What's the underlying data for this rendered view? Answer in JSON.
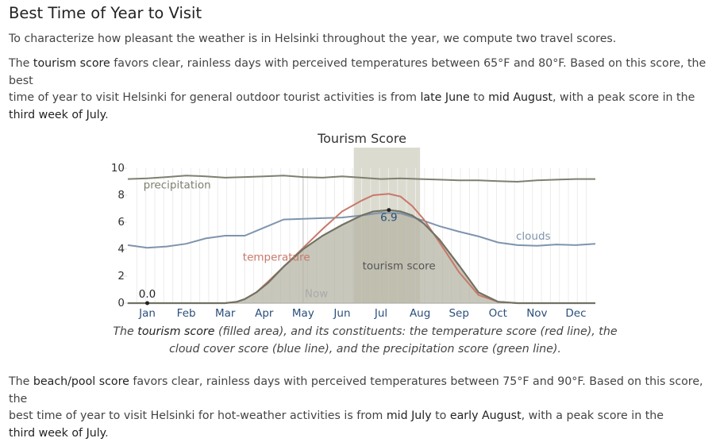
{
  "section": {
    "title": "Best Time of Year to Visit",
    "intro": "To characterize how pleasant the weather is in Helsinki throughout the year, we compute two travel scores."
  },
  "tourism": {
    "t1": "The ",
    "t2": "tourism score",
    "t3": " favors clear, rainless days with perceived temperatures between 65°F and 80°F. Based on this score, the best",
    "t4": "time of year to visit Helsinki for general outdoor tourist activities is from ",
    "t5": "late June",
    "t6": " to ",
    "t7": "mid August",
    "t8": ", with a peak score in the",
    "t9": "third week of July",
    "t10": "."
  },
  "caption": {
    "c1": "The ",
    "c2": "tourism score",
    "c3": " (filled area), and its constituents: the temperature score (red line), the",
    "c4": "cloud cover score (blue line), and the precipitation score (green line)."
  },
  "beach": {
    "b1": "The ",
    "b2": "beach/pool score",
    "b3": " favors clear, rainless days with perceived temperatures between 75°F and 90°F. Based on this score, the",
    "b4": "best time of year to visit Helsinki for hot-weather activities is from ",
    "b5": "mid July",
    "b6": " to ",
    "b7": "early August",
    "b8": ", with a peak score in the",
    "b9": "third week of July",
    "b10": "."
  },
  "chart_data": {
    "type": "area",
    "title": "Tourism Score",
    "ylim": [
      0,
      10
    ],
    "yticks": [
      "0",
      "2",
      "4",
      "6",
      "8",
      "10"
    ],
    "months": [
      "Jan",
      "Feb",
      "Mar",
      "Apr",
      "May",
      "Jun",
      "Jul",
      "Aug",
      "Sep",
      "Oct",
      "Nov",
      "Dec"
    ],
    "now_label": "Now",
    "now_month": 4.5,
    "best_period": [
      5.8,
      7.5
    ],
    "min_label": "0.0",
    "min_point": [
      0.5,
      0.0
    ],
    "peak_label": "6.9",
    "peak_point": [
      6.7,
      6.9
    ],
    "labels": {
      "precipitation": "precipitation",
      "temperature": "temperature",
      "clouds": "clouds",
      "tourism": "tourism score"
    },
    "colors": {
      "tourism_fill": "#b5b4a4",
      "tourism_line": "#727263",
      "temperature": "#c8786a",
      "clouds": "#7f94ad",
      "precipitation": "#7f7f70",
      "best_band": "#d6d5c8"
    },
    "series": [
      {
        "name": "tourism score",
        "x": [
          0,
          0.5,
          1,
          1.5,
          2,
          2.5,
          2.8,
          3,
          3.3,
          3.6,
          4,
          4.5,
          5,
          5.5,
          6,
          6.3,
          6.7,
          7,
          7.3,
          7.6,
          8,
          8.5,
          9,
          9.5,
          10,
          10.5,
          11,
          11.5,
          12
        ],
        "y": [
          0,
          0,
          0,
          0,
          0,
          0,
          0.1,
          0.3,
          0.8,
          1.5,
          2.7,
          4,
          5,
          5.8,
          6.5,
          6.8,
          6.9,
          6.8,
          6.5,
          5.9,
          4.7,
          2.8,
          0.8,
          0.1,
          0,
          0,
          0,
          0,
          0
        ]
      },
      {
        "name": "temperature",
        "x": [
          0,
          0.5,
          1,
          1.5,
          2,
          2.5,
          2.8,
          3,
          3.3,
          3.6,
          4,
          4.5,
          5,
          5.5,
          6,
          6.3,
          6.7,
          7,
          7.3,
          7.6,
          8,
          8.5,
          9,
          9.5,
          10,
          10.5,
          11,
          11.5,
          12
        ],
        "y": [
          0,
          0,
          0,
          0,
          0,
          0,
          0.1,
          0.3,
          0.8,
          1.6,
          2.7,
          4.1,
          5.5,
          6.8,
          7.6,
          8,
          8.1,
          7.9,
          7.2,
          6.2,
          4.5,
          2.3,
          0.6,
          0.1,
          0,
          0,
          0,
          0,
          0
        ]
      },
      {
        "name": "clouds",
        "x": [
          0,
          0.5,
          1,
          1.5,
          2,
          2.5,
          3,
          3.5,
          4,
          4.5,
          5,
          5.5,
          6,
          6.5,
          7,
          7.5,
          8,
          8.5,
          9,
          9.5,
          10,
          10.5,
          11,
          11.5,
          12
        ],
        "y": [
          4.3,
          4.1,
          4.2,
          4.4,
          4.8,
          5,
          5,
          5.6,
          6.2,
          6.25,
          6.3,
          6.35,
          6.5,
          6.7,
          6.65,
          6.2,
          5.7,
          5.3,
          4.95,
          4.5,
          4.3,
          4.25,
          4.35,
          4.3,
          4.4
        ]
      },
      {
        "name": "precipitation",
        "x": [
          0,
          0.5,
          1,
          1.5,
          2,
          2.5,
          3,
          3.5,
          4,
          4.5,
          5,
          5.5,
          6,
          6.5,
          7,
          7.5,
          8,
          8.5,
          9,
          9.5,
          10,
          10.5,
          11,
          11.5,
          12
        ],
        "y": [
          9.2,
          9.25,
          9.35,
          9.45,
          9.4,
          9.3,
          9.35,
          9.4,
          9.45,
          9.35,
          9.3,
          9.4,
          9.3,
          9.2,
          9.25,
          9.2,
          9.15,
          9.1,
          9.1,
          9.05,
          9.0,
          9.1,
          9.15,
          9.2,
          9.2
        ]
      }
    ]
  }
}
